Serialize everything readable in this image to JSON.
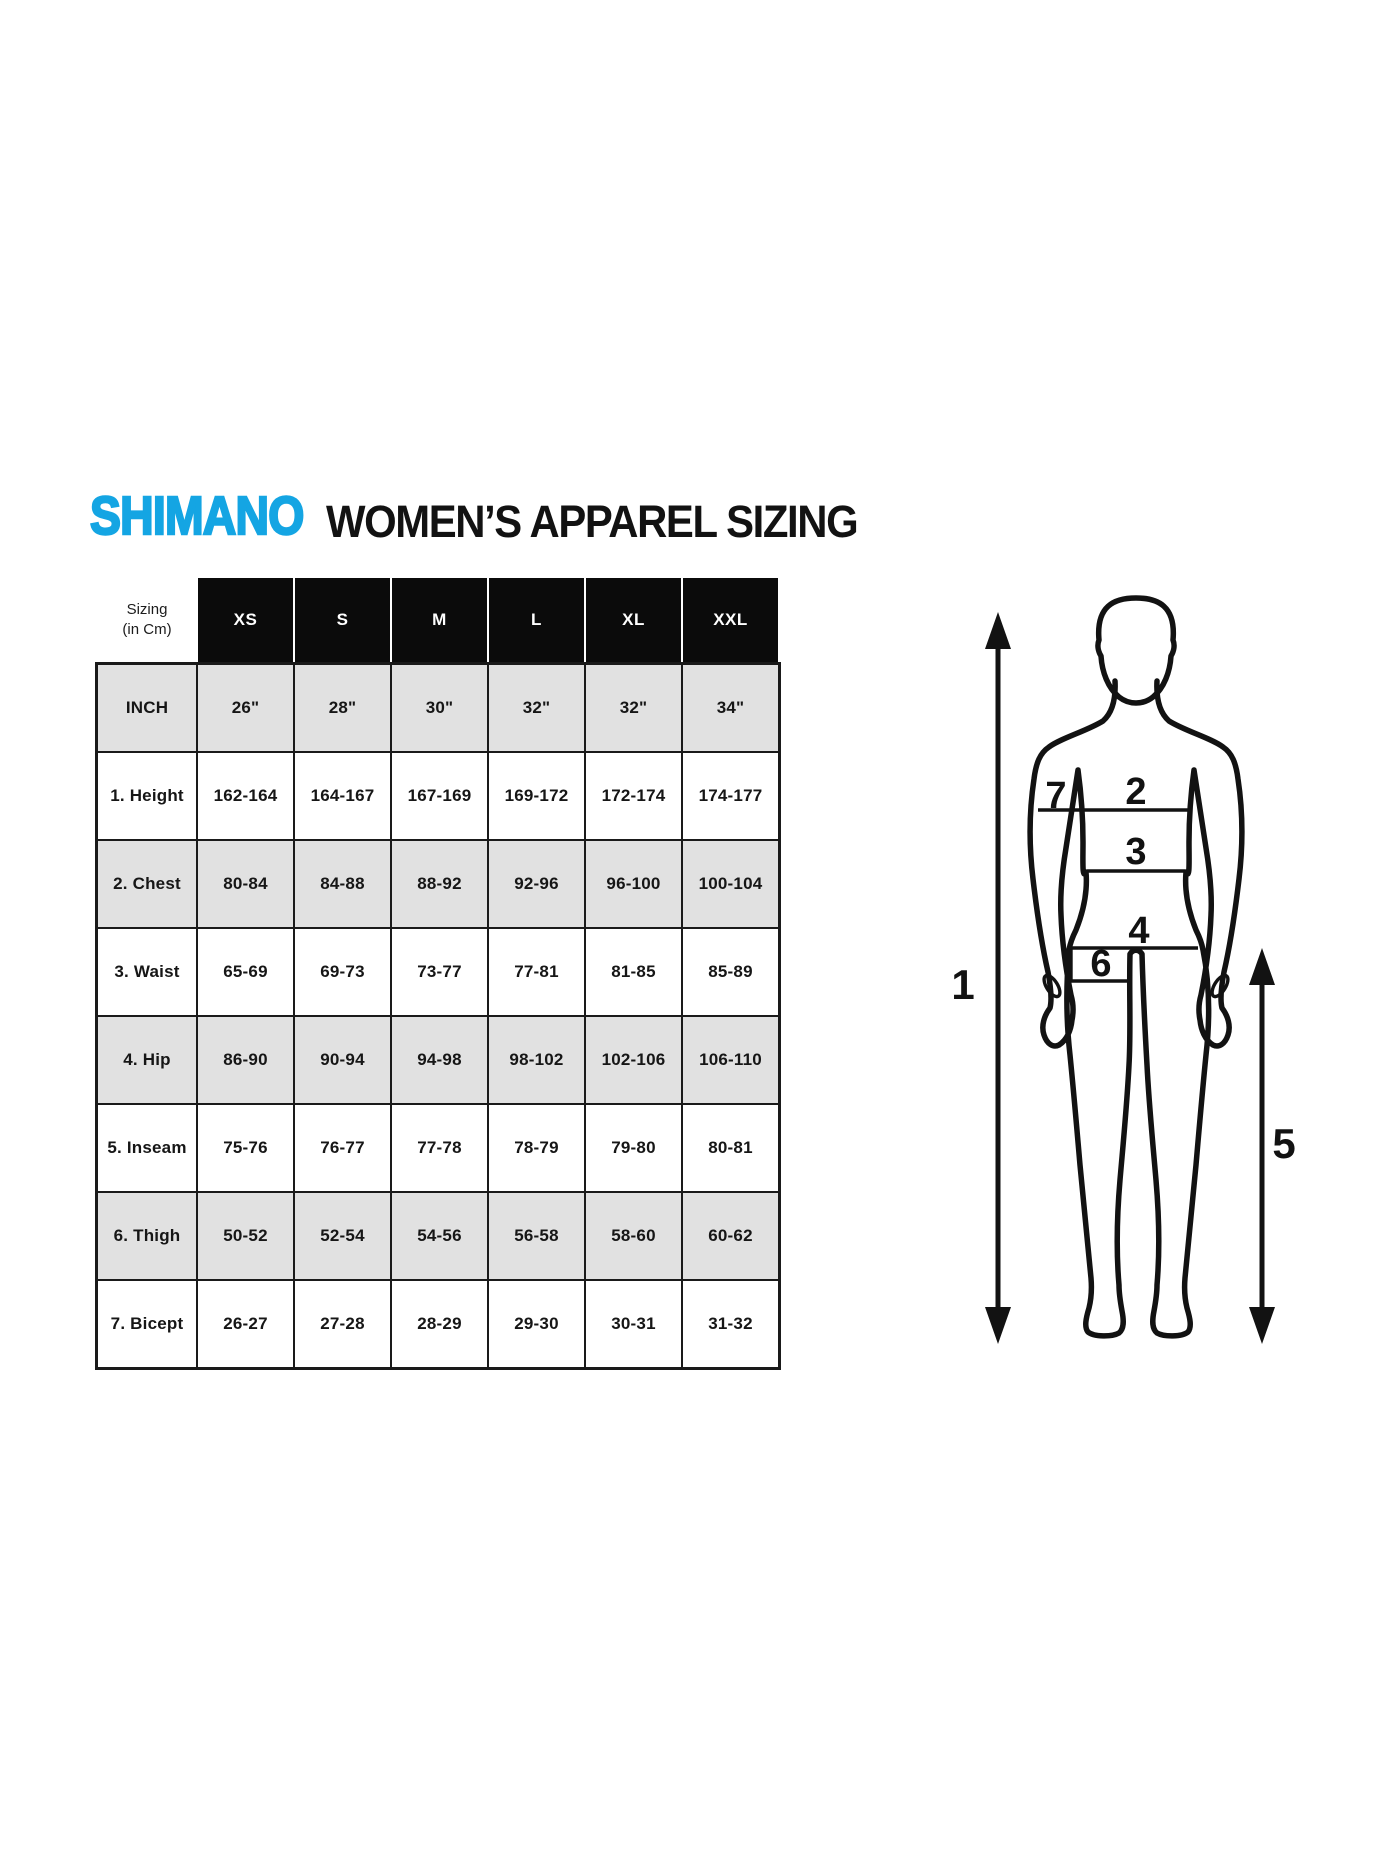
{
  "brand": {
    "logo_text": "SHIMANO",
    "logo_color": "#14a5e3",
    "title": "WOMEN’S APPAREL SIZING"
  },
  "table": {
    "corner_label": "Sizing\n(in Cm)",
    "columns": [
      "XS",
      "S",
      "M",
      "L",
      "XL",
      "XXL"
    ],
    "rows": [
      {
        "label": "INCH",
        "values": [
          "26\"",
          "28\"",
          "30\"",
          "32\"",
          "32\"",
          "34\""
        ]
      },
      {
        "label": "1. Height",
        "values": [
          "162-164",
          "164-167",
          "167-169",
          "169-172",
          "172-174",
          "174-177"
        ]
      },
      {
        "label": "2. Chest",
        "values": [
          "80-84",
          "84-88",
          "88-92",
          "92-96",
          "96-100",
          "100-104"
        ]
      },
      {
        "label": "3. Waist",
        "values": [
          "65-69",
          "69-73",
          "73-77",
          "77-81",
          "81-85",
          "85-89"
        ]
      },
      {
        "label": "4. Hip",
        "values": [
          "86-90",
          "90-94",
          "94-98",
          "98-102",
          "102-106",
          "106-110"
        ]
      },
      {
        "label": "5. Inseam",
        "values": [
          "75-76",
          "76-77",
          "77-78",
          "78-79",
          "79-80",
          "80-81"
        ]
      },
      {
        "label": "6. Thigh",
        "values": [
          "50-52",
          "52-54",
          "54-56",
          "56-58",
          "58-60",
          "60-62"
        ]
      },
      {
        "label": "7. Bicept",
        "values": [
          "26-27",
          "27-28",
          "28-29",
          "29-30",
          "30-31",
          "31-32"
        ]
      }
    ],
    "shade_color": "#e1e1e1",
    "header_bg": "#0b0b0b",
    "grid_color": "#1a1a1a"
  },
  "figure": {
    "labels": {
      "height": "1",
      "chest": "2",
      "waist": "3",
      "hip": "4",
      "inseam": "5",
      "thigh": "6",
      "bicept": "7"
    }
  }
}
